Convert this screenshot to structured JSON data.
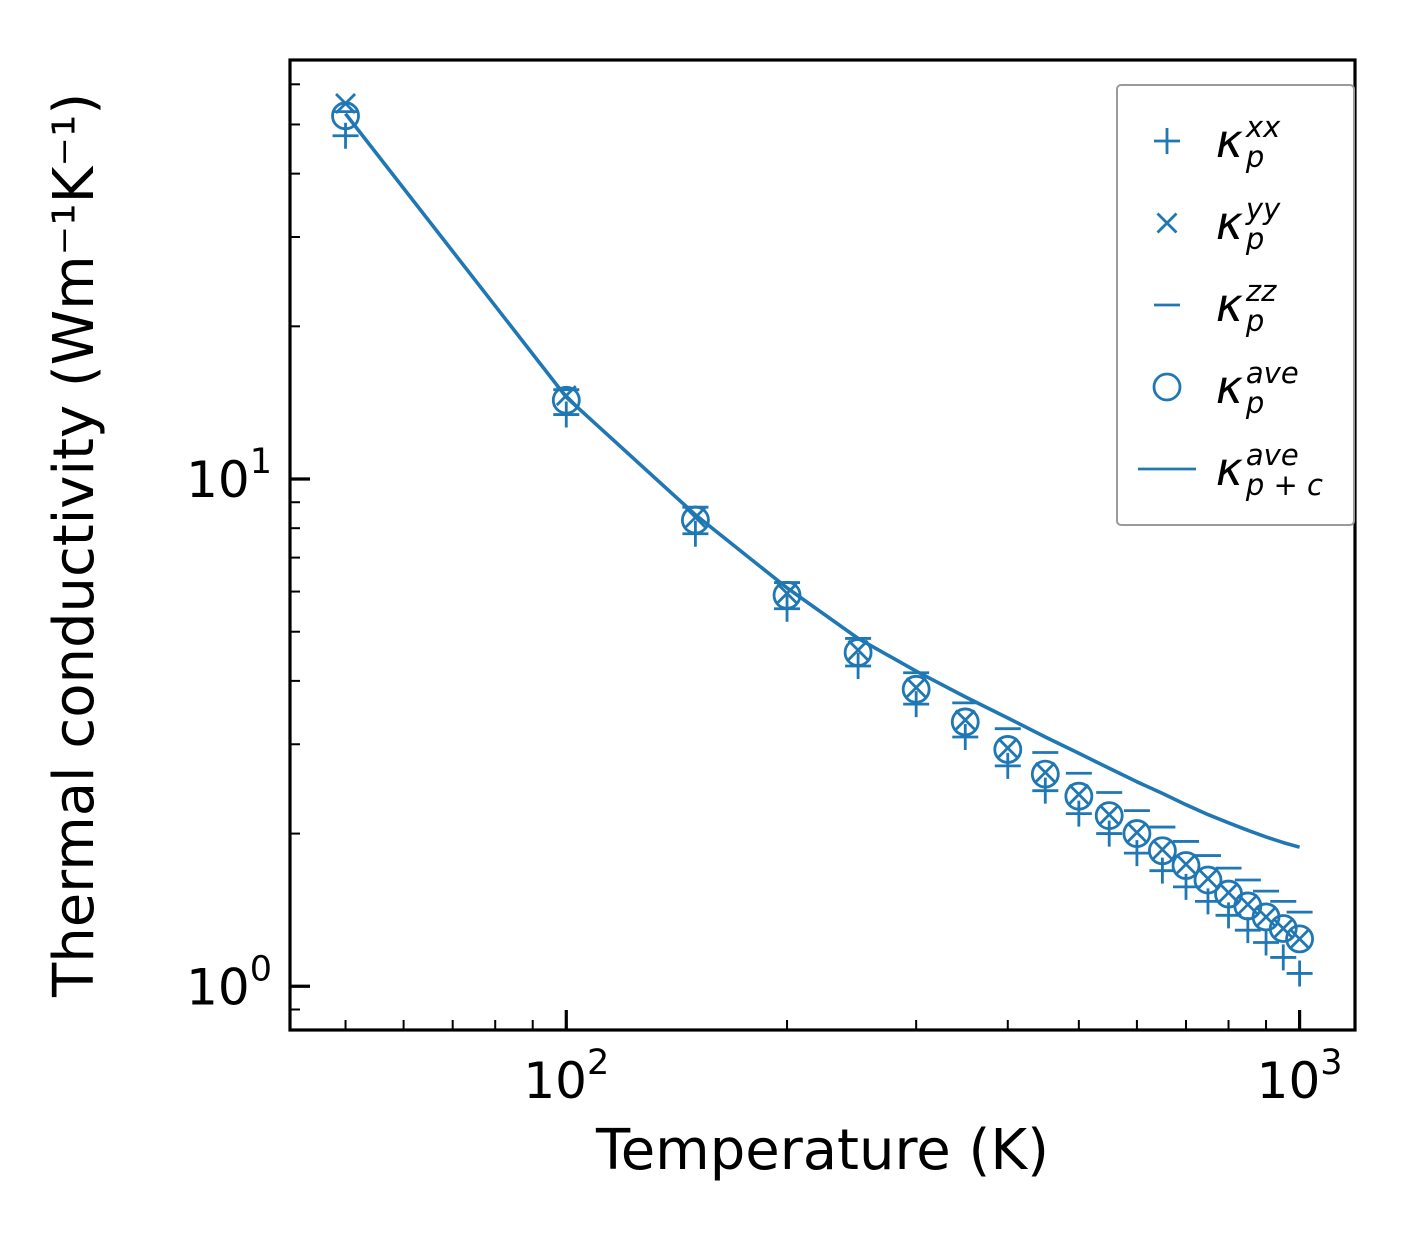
{
  "chart_data": {
    "type": "scatter",
    "title": "",
    "xlabel": "Temperature (K)",
    "ylabel": "Thermal conductivity (Wm⁻¹K⁻¹)",
    "x_scale": "log",
    "y_scale": "log",
    "xlim": [
      42,
      1190
    ],
    "ylim": [
      0.82,
      67
    ],
    "grid": false,
    "legend_position": "upper right",
    "accent_color": "#1f77b4",
    "axis_color": "#000000",
    "x_major_ticks": [
      {
        "value": 100,
        "mantissa": "10",
        "exponent": "2"
      },
      {
        "value": 1000,
        "mantissa": "10",
        "exponent": "3"
      }
    ],
    "y_major_ticks": [
      {
        "value": 1,
        "mantissa": "10",
        "exponent": "0"
      },
      {
        "value": 10,
        "mantissa": "10",
        "exponent": "1"
      }
    ],
    "x_minor_ticks": [
      50,
      60,
      70,
      80,
      90,
      200,
      300,
      400,
      500,
      600,
      700,
      800,
      900
    ],
    "y_minor_ticks": [
      0.9,
      2,
      3,
      4,
      5,
      6,
      7,
      8,
      9,
      20,
      30,
      40,
      50,
      60
    ],
    "x": [
      50,
      100,
      150,
      200,
      250,
      300,
      350,
      400,
      450,
      500,
      550,
      600,
      650,
      700,
      750,
      800,
      850,
      900,
      950,
      1000
    ],
    "series": [
      {
        "id": "kappa-p-xx",
        "marker": "plus",
        "values": [
          47.5,
          13.4,
          7.8,
          5.55,
          4.28,
          3.6,
          3.1,
          2.72,
          2.43,
          2.19,
          2.0,
          1.83,
          1.69,
          1.57,
          1.47,
          1.38,
          1.29,
          1.22,
          1.14,
          1.06
        ]
      },
      {
        "id": "kappa-p-yy",
        "marker": "x",
        "values": [
          55.0,
          14.6,
          8.4,
          5.95,
          4.6,
          3.88,
          3.35,
          2.95,
          2.64,
          2.39,
          2.18,
          2.01,
          1.86,
          1.74,
          1.63,
          1.53,
          1.45,
          1.37,
          1.3,
          1.24
        ]
      },
      {
        "id": "kappa-p-zz",
        "marker": "hline",
        "values": [
          53.0,
          15.0,
          8.8,
          6.25,
          4.85,
          4.15,
          3.62,
          3.22,
          2.89,
          2.63,
          2.41,
          2.22,
          2.06,
          1.93,
          1.81,
          1.71,
          1.62,
          1.54,
          1.47,
          1.4
        ]
      },
      {
        "id": "kappa-p-ave",
        "marker": "circle",
        "values": [
          52.0,
          14.3,
          8.3,
          5.9,
          4.55,
          3.85,
          3.32,
          2.93,
          2.62,
          2.37,
          2.17,
          2.0,
          1.85,
          1.73,
          1.62,
          1.52,
          1.44,
          1.37,
          1.3,
          1.24
        ]
      },
      {
        "id": "kappa-p-plus-c-ave",
        "marker": "line",
        "values": [
          52.5,
          14.5,
          8.5,
          6.1,
          4.85,
          4.18,
          3.72,
          3.38,
          3.1,
          2.88,
          2.69,
          2.53,
          2.4,
          2.28,
          2.18,
          2.1,
          2.03,
          1.97,
          1.92,
          1.88
        ]
      }
    ],
    "legend": [
      {
        "id": "kappa-p-xx",
        "marker": "plus",
        "base": "κ",
        "sub": "p",
        "sup": "xx"
      },
      {
        "id": "kappa-p-yy",
        "marker": "x",
        "base": "κ",
        "sub": "p",
        "sup": "yy"
      },
      {
        "id": "kappa-p-zz",
        "marker": "hline",
        "base": "κ",
        "sub": "p",
        "sup": "zz"
      },
      {
        "id": "kappa-p-ave",
        "marker": "circle",
        "base": "κ",
        "sub": "p",
        "sup": "ave"
      },
      {
        "id": "kappa-p-plus-c-ave",
        "marker": "line",
        "base": "κ",
        "sub": "p + c",
        "sup": "ave"
      }
    ]
  }
}
